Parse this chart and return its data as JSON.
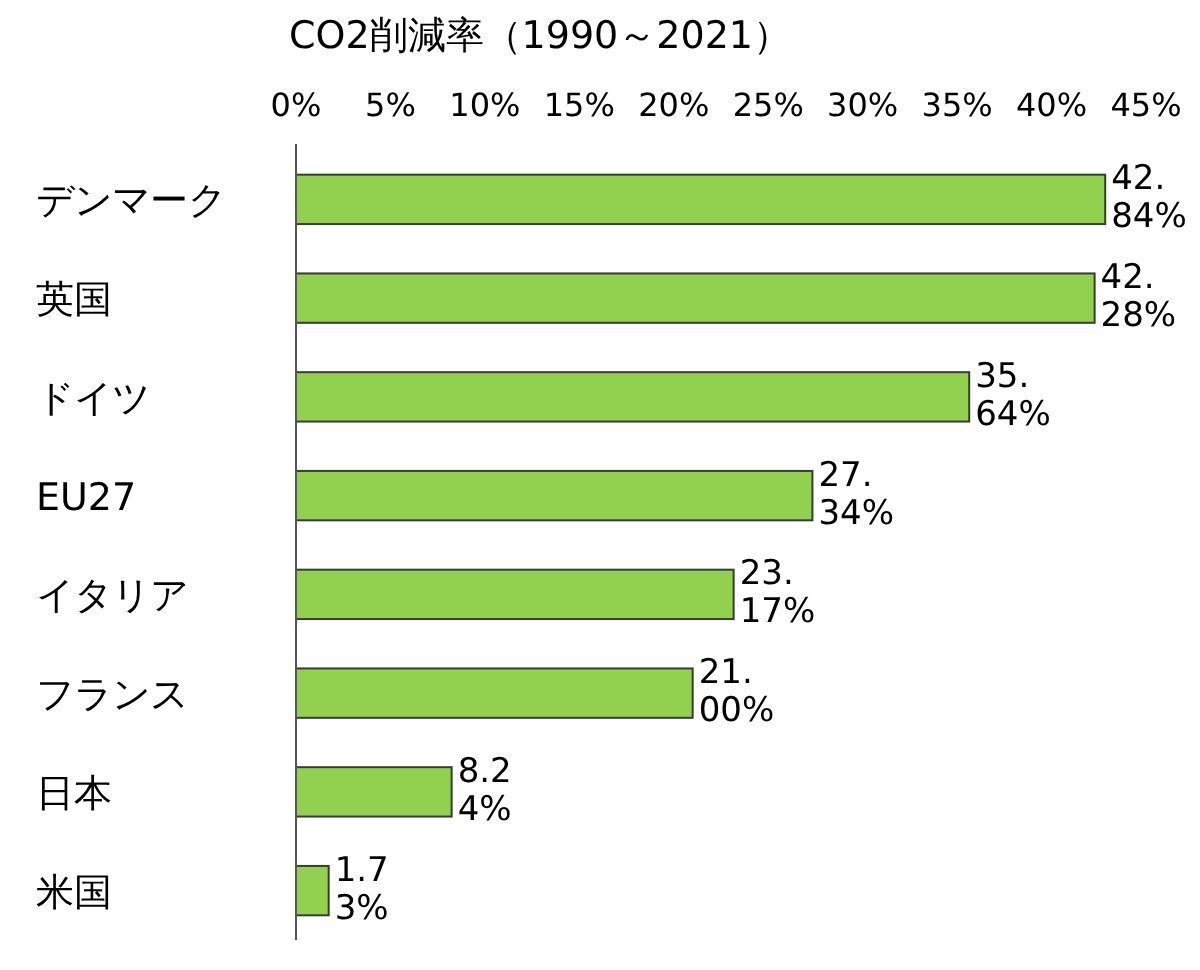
{
  "chart_data": {
    "type": "bar",
    "orientation": "horizontal",
    "title": "CO2削減率（1990～2021）",
    "categories": [
      "デンマーク",
      "英国",
      "ドイツ",
      "EU27",
      "イタリア",
      "フランス",
      "日本",
      "米国"
    ],
    "values": [
      42.84,
      42.28,
      35.64,
      27.34,
      23.17,
      21.0,
      8.24,
      1.73
    ],
    "value_labels": [
      "42.84%",
      "42.28%",
      "35.64%",
      "27.34%",
      "23.17%",
      "21.00%",
      "8.24%",
      "1.73%"
    ],
    "color": "#92d050",
    "xlim": [
      0,
      45
    ],
    "xticks": [
      {
        "value": 0,
        "label": "0%"
      },
      {
        "value": 5,
        "label": "5%"
      },
      {
        "value": 10,
        "label": "10%"
      },
      {
        "value": 15,
        "label": "15%"
      },
      {
        "value": 20,
        "label": "20%"
      },
      {
        "value": 25,
        "label": "25%"
      },
      {
        "value": 30,
        "label": "30%"
      },
      {
        "value": 35,
        "label": "35%"
      },
      {
        "value": 40,
        "label": "40%"
      },
      {
        "value": 45,
        "label": "45%"
      }
    ],
    "grid": false
  }
}
